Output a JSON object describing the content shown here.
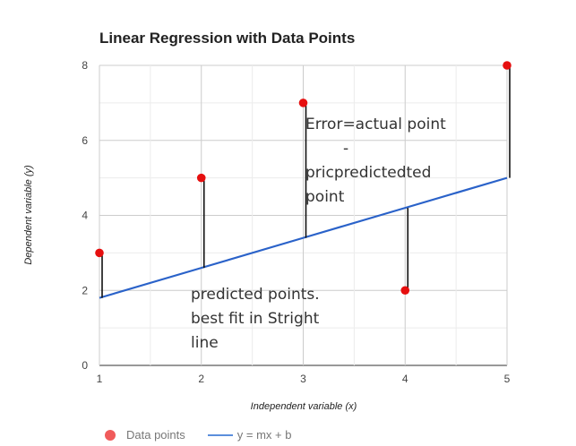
{
  "chart_data": {
    "type": "scatter",
    "title": "Linear Regression with Data Points",
    "xlabel": "Independent variable (x)",
    "ylabel": "Dependent variable (y)",
    "xlim": [
      1,
      5
    ],
    "ylim": [
      0,
      8
    ],
    "x_ticks": [
      "1",
      "2",
      "3",
      "4",
      "5"
    ],
    "y_ticks": [
      "0",
      "2",
      "4",
      "6",
      "8"
    ],
    "grid": true,
    "legend_position": "bottom-left",
    "series": [
      {
        "name": "Data points",
        "kind": "scatter",
        "color": "#e60f0f",
        "x": [
          1,
          2,
          3,
          4,
          5
        ],
        "y": [
          3,
          5,
          7,
          2,
          8
        ]
      },
      {
        "name": "y = mx + b",
        "kind": "line",
        "color": "#2a62c9",
        "x": [
          1,
          2,
          3,
          4,
          5
        ],
        "y": [
          1.8,
          2.6,
          3.4,
          4.2,
          5.0
        ]
      }
    ],
    "error_segments": [
      {
        "x": 1,
        "y_actual": 3,
        "y_predicted": 1.8
      },
      {
        "x": 2,
        "y_actual": 5,
        "y_predicted": 2.6
      },
      {
        "x": 3,
        "y_actual": 7,
        "y_predicted": 3.4
      },
      {
        "x": 4,
        "y_actual": 2,
        "y_predicted": 4.2
      },
      {
        "x": 5,
        "y_actual": 8,
        "y_predicted": 5.0
      }
    ],
    "annotations": [
      {
        "lines": [
          "Error=actual point",
          "-",
          "pricpredictedted",
          "point"
        ]
      },
      {
        "lines": [
          "predicted points.",
          "best fit in Stright",
          "line"
        ]
      }
    ]
  }
}
